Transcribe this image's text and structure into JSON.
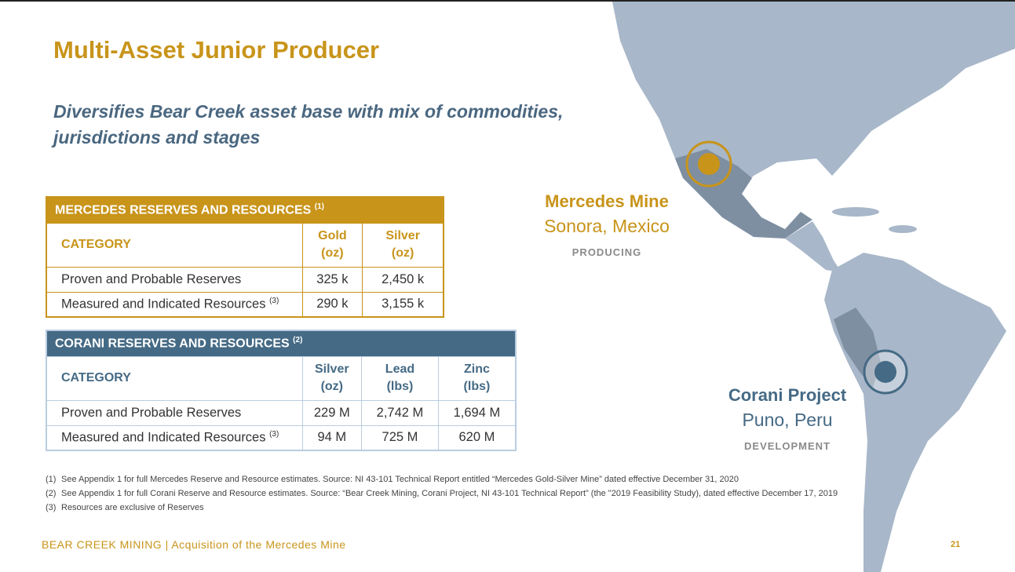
{
  "title": "Multi-Asset Junior Producer",
  "subtitle": "Diversifies Bear Creek asset base with mix of commodities, jurisdictions and stages",
  "mercedes_table": {
    "title": "MERCEDES RESERVES AND RESOURCES",
    "title_note": "(1)",
    "category_header": "CATEGORY",
    "columns": [
      {
        "name": "Gold",
        "unit": "(oz)"
      },
      {
        "name": "Silver",
        "unit": "(oz)"
      }
    ],
    "rows": [
      {
        "label": "Proven and Probable Reserves",
        "note": "",
        "values": [
          "325 k",
          "2,450 k"
        ]
      },
      {
        "label": "Measured and Indicated Resources",
        "note": "(3)",
        "values": [
          "290 k",
          "3,155 k"
        ]
      }
    ]
  },
  "corani_table": {
    "title": "CORANI RESERVES AND RESOURCES",
    "title_note": "(2)",
    "category_header": "CATEGORY",
    "columns": [
      {
        "name": "Silver",
        "unit": "(oz)"
      },
      {
        "name": "Lead",
        "unit": "(lbs)"
      },
      {
        "name": "Zinc",
        "unit": "(lbs)"
      }
    ],
    "rows": [
      {
        "label": "Proven and Probable Reserves",
        "note": "",
        "values": [
          "229 M",
          "2,742 M",
          "1,694 M"
        ]
      },
      {
        "label": "Measured and Indicated Resources",
        "note": "(3)",
        "values": [
          "94 M",
          "725 M",
          "620 M"
        ]
      }
    ]
  },
  "locations": [
    {
      "name": "Mercedes Mine",
      "place": "Sonora, Mexico",
      "status": "PRODUCING"
    },
    {
      "name": "Corani Project",
      "place": "Puno, Peru",
      "status": "DEVELOPMENT"
    }
  ],
  "notes": [
    {
      "n": "(1)",
      "text": "See Appendix 1 for full Mercedes Reserve and Resource estimates. Source: NI 43-101 Technical Report entitled “Mercedes Gold-Silver Mine” dated effective December 31, 2020"
    },
    {
      "n": "(2)",
      "text": "See Appendix 1 for full Corani Reserve and Resource estimates. Source: “Bear Creek Mining, Corani Project, NI 43-101 Technical Report” (the \"2019 Feasibility Study), dated effective December 17, 2019"
    },
    {
      "n": "(3)",
      "text": "Resources are exclusive of Reserves"
    }
  ],
  "footer": "BEAR CREEK MINING | Acquisition of the Mercedes Mine",
  "page_number": "21",
  "colors": {
    "gold": "#c8941a",
    "blue": "#456a85",
    "map": "#a8b7c9"
  }
}
